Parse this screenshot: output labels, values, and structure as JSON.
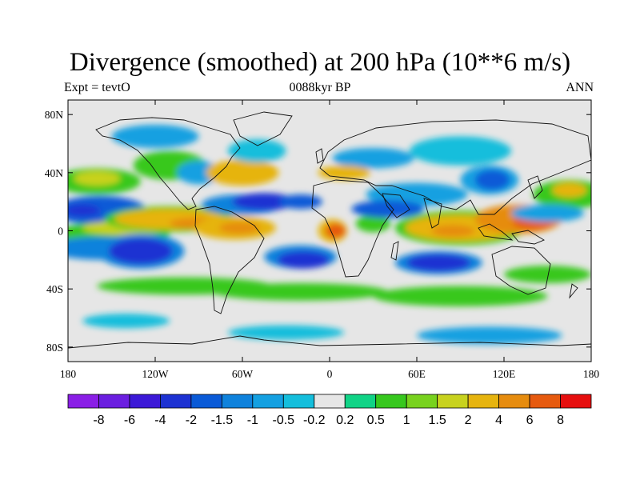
{
  "title": "Divergence (smoothed) at 200 hPa (10**6 m/s)",
  "left_label": "Expt = tevtO",
  "center_label": "0088kyr BP",
  "right_label": "ANN",
  "lat_ticks": [
    {
      "value": 80,
      "label": "80N"
    },
    {
      "value": 40,
      "label": "40N"
    },
    {
      "value": 0,
      "label": "0"
    },
    {
      "value": -40,
      "label": "40S"
    },
    {
      "value": -80,
      "label": "80S"
    }
  ],
  "lon_ticks": [
    {
      "value": -180,
      "label": "180"
    },
    {
      "value": -120,
      "label": "120W"
    },
    {
      "value": -60,
      "label": "60W"
    },
    {
      "value": 0,
      "label": "0"
    },
    {
      "value": 60,
      "label": "60E"
    },
    {
      "value": 120,
      "label": "120E"
    },
    {
      "value": 180,
      "label": "180"
    }
  ],
  "colorbar": {
    "labels": [
      "-8",
      "-6",
      "-4",
      "-2",
      "-1.5",
      "-1",
      "-0.5",
      "-0.2",
      "0.2",
      "0.5",
      "1",
      "1.5",
      "2",
      "4",
      "6",
      "8"
    ],
    "colors": [
      "#8a1ee6",
      "#6b1ee0",
      "#3c19d7",
      "#1d32d2",
      "#0a5ad7",
      "#0f82dc",
      "#14a0e1",
      "#14bedc",
      "#e6e6e6",
      "#10d386",
      "#37c81e",
      "#78d21e",
      "#c8d21e",
      "#e6b40f",
      "#e68c0f",
      "#e65a0f",
      "#e60f0f"
    ]
  },
  "map": {
    "bg_color": "#e6e6e6",
    "blobs": [
      {
        "lon": -160,
        "lat": 34,
        "rx": 30,
        "ry": 9,
        "color": "#37c81e"
      },
      {
        "lon": -160,
        "lat": 36,
        "rx": 16,
        "ry": 5,
        "color": "#c8d21e"
      },
      {
        "lon": -158,
        "lat": 14,
        "rx": 32,
        "ry": 10,
        "color": "#0a5ad7"
      },
      {
        "lon": -170,
        "lat": 14,
        "rx": 12,
        "ry": 4,
        "color": "#1d32d2"
      },
      {
        "lon": -150,
        "lat": -2,
        "rx": 40,
        "ry": 8,
        "color": "#37c81e"
      },
      {
        "lon": -140,
        "lat": 2,
        "rx": 30,
        "ry": 5,
        "color": "#c8d21e"
      },
      {
        "lon": -110,
        "lat": 8,
        "rx": 45,
        "ry": 9,
        "color": "#37c81e"
      },
      {
        "lon": -110,
        "lat": 8,
        "rx": 38,
        "ry": 7,
        "color": "#e6b40f"
      },
      {
        "lon": -92,
        "lat": 5,
        "rx": 18,
        "ry": 4,
        "color": "#e68c0f"
      },
      {
        "lon": -65,
        "lat": 2,
        "rx": 28,
        "ry": 8,
        "color": "#e6b40f"
      },
      {
        "lon": -62,
        "lat": 2,
        "rx": 14,
        "ry": 4,
        "color": "#e68c0f"
      },
      {
        "lon": -155,
        "lat": -12,
        "rx": 40,
        "ry": 8,
        "color": "#0f82dc"
      },
      {
        "lon": -130,
        "lat": -14,
        "rx": 30,
        "ry": 12,
        "color": "#0f82dc"
      },
      {
        "lon": -130,
        "lat": -14,
        "rx": 22,
        "ry": 9,
        "color": "#1d32d2"
      },
      {
        "lon": -20,
        "lat": -18,
        "rx": 25,
        "ry": 8,
        "color": "#0f82dc"
      },
      {
        "lon": -18,
        "lat": -20,
        "rx": 18,
        "ry": 6,
        "color": "#1d32d2"
      },
      {
        "lon": 75,
        "lat": -22,
        "rx": 30,
        "ry": 8,
        "color": "#0f82dc"
      },
      {
        "lon": 75,
        "lat": -22,
        "rx": 22,
        "ry": 6,
        "color": "#1d32d2"
      },
      {
        "lon": -60,
        "lat": 18,
        "rx": 28,
        "ry": 7,
        "color": "#0f82dc"
      },
      {
        "lon": -45,
        "lat": 20,
        "rx": 22,
        "ry": 6,
        "color": "#1d32d2"
      },
      {
        "lon": -20,
        "lat": 20,
        "rx": 15,
        "ry": 5,
        "color": "#0a5ad7"
      },
      {
        "lon": 2,
        "lat": 0,
        "rx": 10,
        "ry": 8,
        "color": "#e6b40f"
      },
      {
        "lon": 4,
        "lat": 0,
        "rx": 7,
        "ry": 5,
        "color": "#e65a0f"
      },
      {
        "lon": 30,
        "lat": 5,
        "rx": 12,
        "ry": 6,
        "color": "#37c81e"
      },
      {
        "lon": 60,
        "lat": 25,
        "rx": 35,
        "ry": 8,
        "color": "#14a0e1"
      },
      {
        "lon": 40,
        "lat": 15,
        "rx": 25,
        "ry": 6,
        "color": "#0a5ad7"
      },
      {
        "lon": 90,
        "lat": 2,
        "rx": 45,
        "ry": 12,
        "color": "#37c81e"
      },
      {
        "lon": 90,
        "lat": 2,
        "rx": 38,
        "ry": 9,
        "color": "#e6b40f"
      },
      {
        "lon": 85,
        "lat": 0,
        "rx": 15,
        "ry": 4,
        "color": "#e68c0f"
      },
      {
        "lon": 130,
        "lat": 8,
        "rx": 30,
        "ry": 10,
        "color": "#e68c0f"
      },
      {
        "lon": 140,
        "lat": 6,
        "rx": 14,
        "ry": 5,
        "color": "#e65a0f"
      },
      {
        "lon": 165,
        "lat": 25,
        "rx": 25,
        "ry": 10,
        "color": "#37c81e"
      },
      {
        "lon": 165,
        "lat": 28,
        "rx": 12,
        "ry": 5,
        "color": "#e6b40f"
      },
      {
        "lon": 150,
        "lat": 12,
        "rx": 25,
        "ry": 6,
        "color": "#14a0e1"
      },
      {
        "lon": 110,
        "lat": 35,
        "rx": 20,
        "ry": 10,
        "color": "#14a0e1"
      },
      {
        "lon": 112,
        "lat": 35,
        "rx": 12,
        "ry": 7,
        "color": "#0a5ad7"
      },
      {
        "lon": -110,
        "lat": 45,
        "rx": 25,
        "ry": 10,
        "color": "#37c81e"
      },
      {
        "lon": -90,
        "lat": 40,
        "rx": 15,
        "ry": 8,
        "color": "#14a0e1"
      },
      {
        "lon": -60,
        "lat": 40,
        "rx": 25,
        "ry": 9,
        "color": "#e6b40f"
      },
      {
        "lon": -50,
        "lat": 55,
        "rx": 20,
        "ry": 8,
        "color": "#14bedc"
      },
      {
        "lon": -120,
        "lat": 65,
        "rx": 30,
        "ry": 8,
        "color": "#14a0e1"
      },
      {
        "lon": 30,
        "lat": 50,
        "rx": 28,
        "ry": 7,
        "color": "#14a0e1"
      },
      {
        "lon": 10,
        "lat": 40,
        "rx": 18,
        "ry": 5,
        "color": "#e6b40f"
      },
      {
        "lon": 90,
        "lat": 55,
        "rx": 35,
        "ry": 10,
        "color": "#14bedc"
      },
      {
        "lon": -100,
        "lat": -38,
        "rx": 60,
        "ry": 6,
        "color": "#37c81e"
      },
      {
        "lon": -20,
        "lat": -42,
        "rx": 60,
        "ry": 6,
        "color": "#37c81e"
      },
      {
        "lon": 90,
        "lat": -45,
        "rx": 60,
        "ry": 7,
        "color": "#37c81e"
      },
      {
        "lon": 150,
        "lat": -30,
        "rx": 30,
        "ry": 6,
        "color": "#37c81e"
      },
      {
        "lon": 110,
        "lat": -72,
        "rx": 50,
        "ry": 6,
        "color": "#14a0e1"
      },
      {
        "lon": -30,
        "lat": -70,
        "rx": 40,
        "ry": 5,
        "color": "#14bedc"
      },
      {
        "lon": -140,
        "lat": -62,
        "rx": 30,
        "ry": 5,
        "color": "#14bedc"
      }
    ]
  }
}
